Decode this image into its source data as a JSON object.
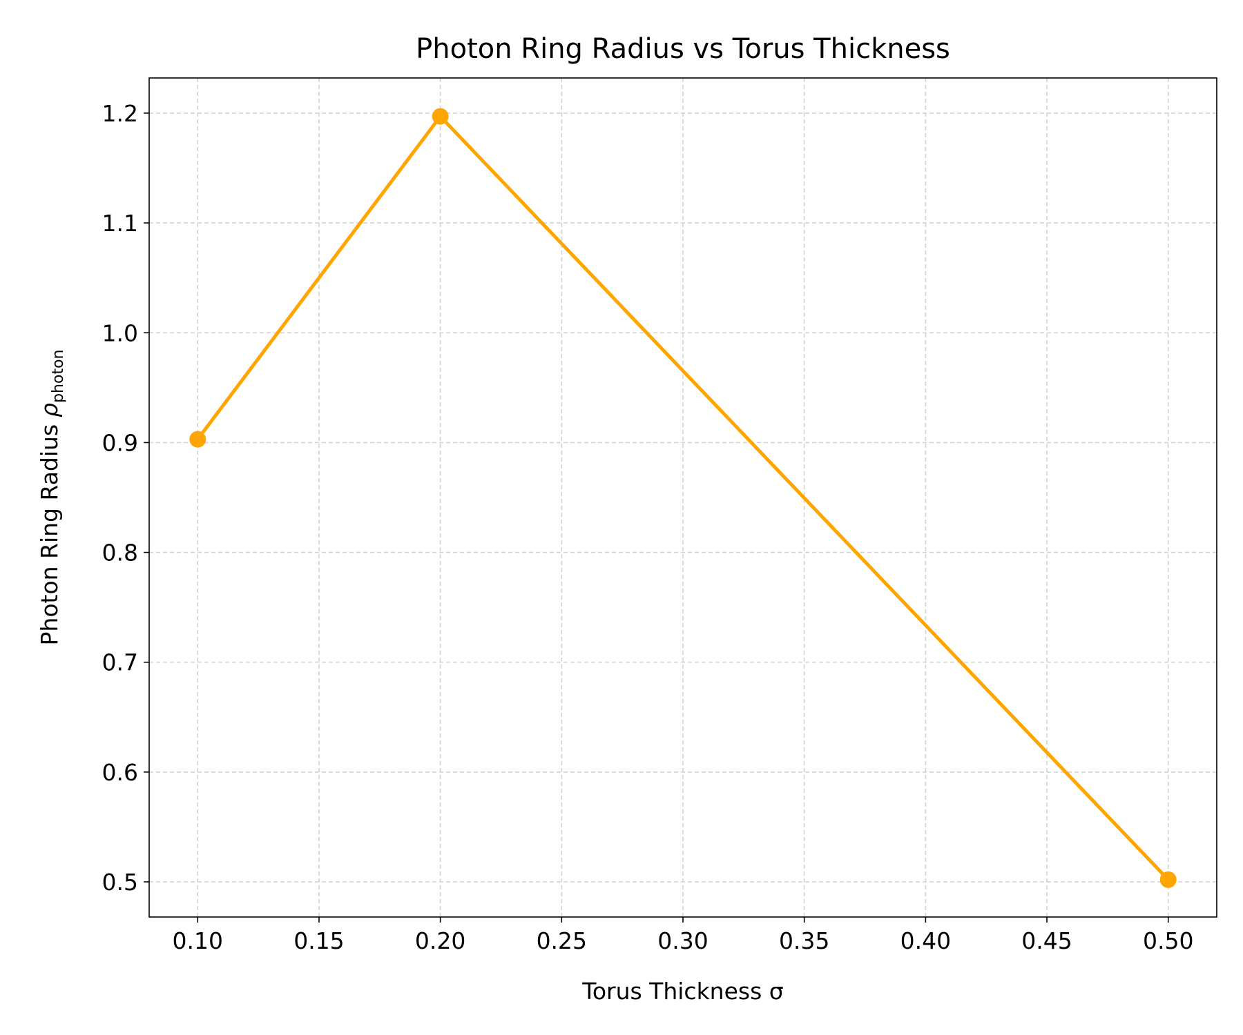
{
  "chart_data": {
    "type": "line",
    "title": "Photon Ring Radius vs Torus Thickness",
    "xlabel": "Torus Thickness σ",
    "ylabel": "Photon Ring Radius",
    "ylabel_symbol": "ρ",
    "ylabel_subscript": "photon",
    "x": [
      0.1,
      0.2,
      0.5
    ],
    "series": [
      {
        "values": [
          0.903,
          1.197,
          0.502
        ],
        "color": "#FFA500"
      }
    ],
    "xlim": [
      0.08,
      0.52
    ],
    "ylim": [
      0.468,
      1.232
    ],
    "x_ticks": [
      0.1,
      0.15,
      0.2,
      0.25,
      0.3,
      0.35,
      0.4,
      0.45,
      0.5
    ],
    "x_tick_labels": [
      "0.10",
      "0.15",
      "0.20",
      "0.25",
      "0.30",
      "0.35",
      "0.40",
      "0.45",
      "0.50"
    ],
    "y_ticks": [
      0.5,
      0.6,
      0.7,
      0.8,
      0.9,
      1.0,
      1.1,
      1.2
    ],
    "y_tick_labels": [
      "0.5",
      "0.6",
      "0.7",
      "0.8",
      "0.9",
      "1.0",
      "1.1",
      "1.2"
    ],
    "grid": true,
    "grid_style": "dashed",
    "grid_color": "#D3D3D3",
    "legend": false
  }
}
